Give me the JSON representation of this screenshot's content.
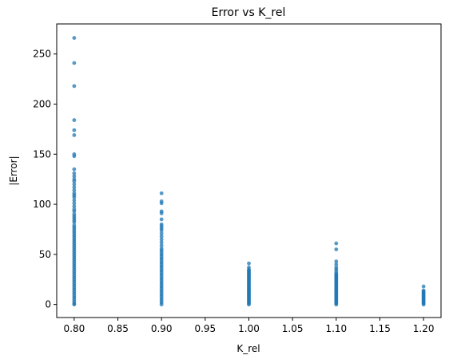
{
  "chart_data": {
    "type": "scatter",
    "title": "Error vs K_rel",
    "xlabel": "K_rel",
    "ylabel": "|Error|",
    "xlim": [
      0.78,
      1.22
    ],
    "ylim": [
      -13,
      280
    ],
    "xticks": [
      0.8,
      0.85,
      0.9,
      0.95,
      1.0,
      1.05,
      1.1,
      1.15,
      1.2
    ],
    "xtick_labels": [
      "0.80",
      "0.85",
      "0.90",
      "0.95",
      "1.00",
      "1.05",
      "1.10",
      "1.15",
      "1.20"
    ],
    "yticks": [
      0,
      50,
      100,
      150,
      200,
      250
    ],
    "ytick_labels": [
      "0",
      "50",
      "100",
      "150",
      "200",
      "250"
    ],
    "grid": false,
    "point_color": "#1f77b4",
    "series": [
      {
        "x": 0.8,
        "y": [
          266,
          241,
          218,
          184,
          174,
          169,
          150,
          148,
          135,
          131,
          128,
          125,
          123,
          120,
          117,
          114,
          111,
          109,
          107,
          104,
          101,
          98,
          95,
          93,
          90,
          88,
          86,
          84,
          82,
          79,
          77,
          75,
          73,
          71,
          69,
          67,
          65,
          63,
          61,
          59,
          57,
          55,
          53,
          51,
          49,
          47,
          45,
          43,
          41,
          39,
          37,
          35,
          33,
          31,
          29,
          27,
          25,
          23,
          21,
          19,
          17,
          15,
          13,
          11,
          9,
          7,
          5,
          3,
          1,
          0
        ]
      },
      {
        "x": 0.9,
        "y": [
          111,
          103,
          101,
          93,
          91,
          85,
          80,
          78,
          76,
          74,
          71,
          68,
          65,
          62,
          59,
          56,
          54,
          52,
          50,
          48,
          46,
          44,
          42,
          40,
          38,
          36,
          34,
          32,
          30,
          28,
          26,
          24,
          22,
          20,
          18,
          16,
          14,
          12,
          10,
          8,
          6,
          4,
          2,
          0
        ]
      },
      {
        "x": 1.0,
        "y": [
          41,
          37,
          35,
          34,
          33,
          32,
          31,
          30,
          29,
          28,
          27,
          26,
          25,
          24,
          23,
          22,
          21,
          20,
          19,
          18,
          17,
          16,
          15,
          14,
          13,
          12,
          11,
          10,
          9,
          8,
          7,
          6,
          5,
          4,
          3,
          2,
          1,
          0
        ]
      },
      {
        "x": 1.1,
        "y": [
          61,
          55,
          43,
          40,
          37,
          35,
          33,
          31,
          30,
          29,
          28,
          27,
          26,
          25,
          24,
          23,
          22,
          21,
          20,
          19,
          18,
          17,
          16,
          15,
          14,
          13,
          12,
          11,
          10,
          9,
          8,
          7,
          6,
          5,
          4,
          3,
          2,
          1,
          0
        ]
      },
      {
        "x": 1.2,
        "y": [
          18,
          14,
          13,
          12,
          11,
          10,
          9,
          8,
          7,
          6,
          5,
          4,
          3,
          2,
          1,
          0
        ]
      }
    ]
  }
}
